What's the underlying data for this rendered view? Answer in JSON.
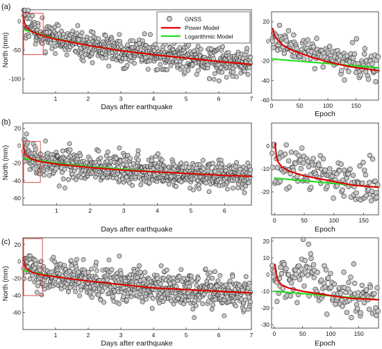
{
  "figure": {
    "legend": {
      "items": [
        {
          "label": "GNSS",
          "kind": "marker"
        },
        {
          "label": "Power Model",
          "color": "#e00000"
        },
        {
          "label": "Logarithmic Model",
          "color": "#22dd22"
        }
      ]
    },
    "colors": {
      "gnss_fill": "#c8c8c8",
      "gnss_edge": "#303030",
      "power": "#e00000",
      "log": "#22dd22",
      "box": "#ee4444"
    }
  },
  "chart_data": [
    {
      "panel": "(a)",
      "type": "scatter",
      "xlabel": "Days after earthquake",
      "ylabel": "North (mm)",
      "xlim": [
        0,
        7
      ],
      "ylim": [
        -125,
        20
      ],
      "xticks": [
        1,
        2,
        3,
        4,
        5,
        6,
        7
      ],
      "yticks": [
        0,
        -50,
        -100
      ],
      "series": [
        {
          "name": "GNSS",
          "style": "markers",
          "n": 700,
          "noise": 12,
          "x": [
            0.02,
            0.1,
            0.2,
            0.35,
            0.5,
            0.75,
            1,
            1.5,
            2,
            3,
            4,
            5,
            6,
            7
          ],
          "y": [
            5,
            -4,
            -10,
            -16,
            -20,
            -26,
            -30,
            -36,
            -42,
            -51,
            -58,
            -64,
            -70,
            -74
          ]
        },
        {
          "name": "Power Model",
          "x": [
            0.01,
            0.05,
            0.1,
            0.25,
            0.5,
            1,
            2,
            3,
            4,
            5,
            6,
            7
          ],
          "y": [
            10,
            -3,
            -10,
            -17,
            -23,
            -31,
            -42,
            -51,
            -58,
            -64,
            -70,
            -75
          ]
        },
        {
          "name": "Logarithmic Model",
          "x": [
            0.01,
            0.1,
            0.25,
            0.5,
            1,
            2,
            3,
            4,
            5,
            6,
            7
          ],
          "y": [
            -14,
            -16,
            -18,
            -22,
            -30,
            -42,
            -51,
            -58,
            -64,
            -70,
            -75
          ]
        }
      ],
      "highlight_box": {
        "x": [
          0,
          0.62
        ],
        "y": [
          -58,
          14
        ]
      },
      "zoom": {
        "xlabel": "Epoch",
        "xlim": [
          0,
          190
        ],
        "ylim": [
          -60,
          30
        ],
        "xticks": [
          0,
          50,
          100,
          150
        ],
        "yticks": [
          20,
          0,
          -20,
          -40,
          -60
        ],
        "series": [
          {
            "name": "GNSS",
            "n": 150,
            "noise": 8,
            "x": [
              0,
              20,
              50,
              100,
              150,
              190
            ],
            "y": [
              2,
              -2,
              -8,
              -16,
              -22,
              -30
            ]
          },
          {
            "name": "Power Model",
            "x": [
              2,
              5,
              10,
              20,
              40,
              70,
              100,
              140,
              190
            ],
            "y": [
              13,
              6,
              2,
              -4,
              -10,
              -16,
              -21,
              -26,
              -30
            ]
          },
          {
            "name": "Logarithmic Model",
            "x": [
              0,
              190
            ],
            "y": [
              -18,
              -27
            ]
          }
        ]
      }
    },
    {
      "panel": "(b)",
      "type": "scatter",
      "xlabel": "Days after earthquake",
      "ylabel": "North (mm)",
      "xlim": [
        0,
        6.8
      ],
      "ylim": [
        -68,
        26
      ],
      "xticks": [
        1,
        2,
        3,
        4,
        5,
        6
      ],
      "yticks": [
        20,
        0,
        -20,
        -40,
        -60
      ],
      "series": [
        {
          "name": "GNSS",
          "style": "markers",
          "n": 700,
          "noise": 8,
          "x": [
            0.02,
            0.2,
            0.5,
            1,
            2,
            3,
            4,
            5,
            6,
            6.8
          ],
          "y": [
            -5,
            -14,
            -17,
            -20,
            -24,
            -27,
            -30,
            -32,
            -33,
            -34
          ]
        },
        {
          "name": "Power Model",
          "x": [
            0.01,
            0.05,
            0.1,
            0.25,
            0.5,
            1,
            2,
            3,
            4,
            5,
            6,
            6.8
          ],
          "y": [
            1,
            -7,
            -11,
            -15,
            -18,
            -21,
            -25,
            -28,
            -30,
            -32,
            -34,
            -35
          ]
        },
        {
          "name": "Logarithmic Model",
          "x": [
            0.01,
            0.1,
            0.5,
            1,
            2,
            3,
            4,
            5,
            6,
            6.8
          ],
          "y": [
            -14,
            -15,
            -17,
            -20,
            -24,
            -27,
            -30,
            -32,
            -34,
            -35
          ]
        }
      ],
      "highlight_box": {
        "x": [
          0,
          0.52
        ],
        "y": [
          -42,
          5
        ]
      },
      "zoom": {
        "xlabel": "Epoch",
        "xlim": [
          -5,
          175
        ],
        "ylim": [
          -30,
          10
        ],
        "xticks": [
          0,
          50,
          100,
          150
        ],
        "yticks": [
          0,
          -10,
          -20
        ],
        "series": [
          {
            "name": "GNSS",
            "n": 150,
            "noise": 5,
            "x": [
              0,
              30,
              60,
              100,
              140,
              175
            ],
            "y": [
              -8,
              -10,
              -12,
              -14,
              -16,
              -17
            ]
          },
          {
            "name": "Power Model",
            "x": [
              1,
              3,
              6,
              12,
              25,
              50,
              90,
              130,
              175
            ],
            "y": [
              1,
              -4,
              -7,
              -9,
              -11,
              -13,
              -15,
              -17,
              -18
            ]
          },
          {
            "name": "Logarithmic Model",
            "x": [
              0,
              175
            ],
            "y": [
              -14,
              -18
            ]
          }
        ]
      }
    },
    {
      "panel": "(c)",
      "type": "scatter",
      "xlabel": "Days after earthquake",
      "ylabel": "North (mm)",
      "xlim": [
        0,
        7
      ],
      "ylim": [
        -80,
        28
      ],
      "xticks": [
        1,
        2,
        3,
        4,
        5,
        6,
        7
      ],
      "yticks": [
        20,
        0,
        -20,
        -40,
        -60
      ],
      "series": [
        {
          "name": "GNSS",
          "style": "markers",
          "n": 700,
          "noise": 10,
          "x": [
            0.02,
            0.1,
            0.3,
            0.6,
            1,
            2,
            3,
            4,
            5,
            6,
            7
          ],
          "y": [
            -8,
            -2,
            -10,
            -16,
            -18,
            -23,
            -27,
            -31,
            -33,
            -35,
            -36
          ]
        },
        {
          "name": "Power Model",
          "x": [
            0.01,
            0.05,
            0.1,
            0.25,
            0.5,
            1,
            2,
            3,
            4,
            5,
            6,
            7
          ],
          "y": [
            5,
            -4,
            -8,
            -12,
            -15,
            -18,
            -23,
            -27,
            -31,
            -33,
            -35,
            -37
          ]
        },
        {
          "name": "Logarithmic Model",
          "x": [
            0.01,
            0.1,
            0.5,
            1,
            2,
            3,
            4,
            5,
            6,
            7
          ],
          "y": [
            -10,
            -11,
            -14,
            -18,
            -23,
            -27,
            -31,
            -33,
            -35,
            -37
          ]
        }
      ],
      "highlight_box": {
        "x": [
          0,
          0.6
        ],
        "y": [
          -40,
          27
        ]
      },
      "zoom": {
        "xlabel": "Epoch",
        "xlim": [
          -5,
          185
        ],
        "ylim": [
          -32,
          22
        ],
        "xticks": [
          0,
          50,
          100,
          150
        ],
        "yticks": [
          20,
          10,
          0,
          -10,
          -20,
          -30
        ],
        "series": [
          {
            "name": "GNSS",
            "n": 150,
            "noise": 7,
            "x": [
              0,
              30,
              55,
              80,
              120,
              185
            ],
            "y": [
              -7,
              -5,
              5,
              -8,
              -12,
              -14
            ]
          },
          {
            "name": "Power Model",
            "x": [
              1,
              3,
              6,
              12,
              25,
              50,
              90,
              130,
              185
            ],
            "y": [
              6,
              1,
              -3,
              -6,
              -8,
              -10,
              -12,
              -14,
              -15
            ]
          },
          {
            "name": "Logarithmic Model",
            "x": [
              0,
              185
            ],
            "y": [
              -10,
              -15
            ]
          }
        ]
      }
    }
  ]
}
